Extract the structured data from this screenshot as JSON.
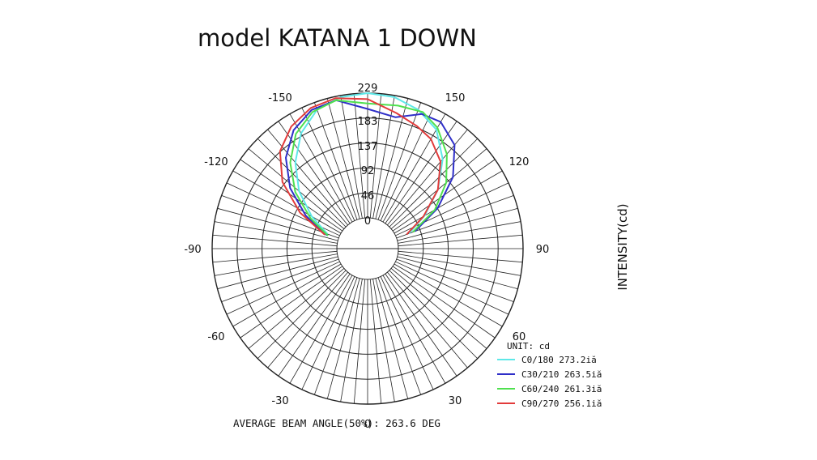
{
  "chart_data": {
    "type": "polar",
    "title": "model KATANA 1 DOWN",
    "ylabel": "INTENSITY(cd)",
    "radial_ticks": [
      "0",
      "46",
      "92",
      "137",
      "183",
      "229"
    ],
    "radial_max": 229,
    "angle_labels": [
      {
        "deg": 0,
        "label": "0"
      },
      {
        "deg": 30,
        "label": "30"
      },
      {
        "deg": 60,
        "label": "60"
      },
      {
        "deg": 90,
        "label": "90"
      },
      {
        "deg": 120,
        "label": "120"
      },
      {
        "deg": 150,
        "label": "150"
      },
      {
        "deg": -30,
        "label": "-30"
      },
      {
        "deg": -60,
        "label": "-60"
      },
      {
        "deg": -90,
        "label": "-90"
      },
      {
        "deg": -120,
        "label": "-120"
      },
      {
        "deg": -150,
        "label": "-150"
      }
    ],
    "unit_label": "UNIT: cd",
    "footer": "AVERAGE BEAM ANGLE(50%): 263.6 DEG",
    "series": [
      {
        "name": "C0/180 273.2iă",
        "color": "#5ee8e8",
        "points": [
          [
            -110,
            22
          ],
          [
            -120,
            62
          ],
          [
            -130,
            108
          ],
          [
            -140,
            150
          ],
          [
            -150,
            188
          ],
          [
            -160,
            215
          ],
          [
            -170,
            226
          ],
          [
            -180,
            229
          ],
          [
            170,
            226
          ],
          [
            160,
            215
          ],
          [
            150,
            196
          ],
          [
            140,
            158
          ],
          [
            130,
            112
          ],
          [
            120,
            64
          ],
          [
            110,
            24
          ]
        ]
      },
      {
        "name": "C30/210 263.5iă",
        "color": "#2f2fc8",
        "points": [
          [
            -108,
            22
          ],
          [
            -118,
            72
          ],
          [
            -128,
            124
          ],
          [
            -138,
            168
          ],
          [
            -148,
            200
          ],
          [
            -158,
            218
          ],
          [
            -168,
            222
          ],
          [
            -180,
            200
          ],
          [
            168,
            190
          ],
          [
            158,
            210
          ],
          [
            150,
            212
          ],
          [
            140,
            192
          ],
          [
            130,
            148
          ],
          [
            120,
            92
          ],
          [
            110,
            36
          ]
        ]
      },
      {
        "name": "C60/240 261.3iă",
        "color": "#4fe04f",
        "points": [
          [
            -108,
            20
          ],
          [
            -118,
            62
          ],
          [
            -128,
            112
          ],
          [
            -138,
            156
          ],
          [
            -148,
            192
          ],
          [
            -158,
            214
          ],
          [
            -168,
            222
          ],
          [
            -180,
            210
          ],
          [
            168,
            212
          ],
          [
            158,
            214
          ],
          [
            150,
            200
          ],
          [
            140,
            170
          ],
          [
            130,
            132
          ],
          [
            120,
            86
          ],
          [
            110,
            32
          ]
        ]
      },
      {
        "name": "C90/270 256.1iă",
        "color": "#e23b3b",
        "points": [
          [
            -108,
            26
          ],
          [
            -118,
            84
          ],
          [
            -128,
            142
          ],
          [
            -138,
            184
          ],
          [
            -148,
            208
          ],
          [
            -158,
            222
          ],
          [
            -168,
            226
          ],
          [
            -180,
            218
          ],
          [
            168,
            198
          ],
          [
            158,
            186
          ],
          [
            150,
            176
          ],
          [
            140,
            152
          ],
          [
            130,
            112
          ],
          [
            120,
            62
          ],
          [
            110,
            20
          ]
        ]
      }
    ]
  }
}
